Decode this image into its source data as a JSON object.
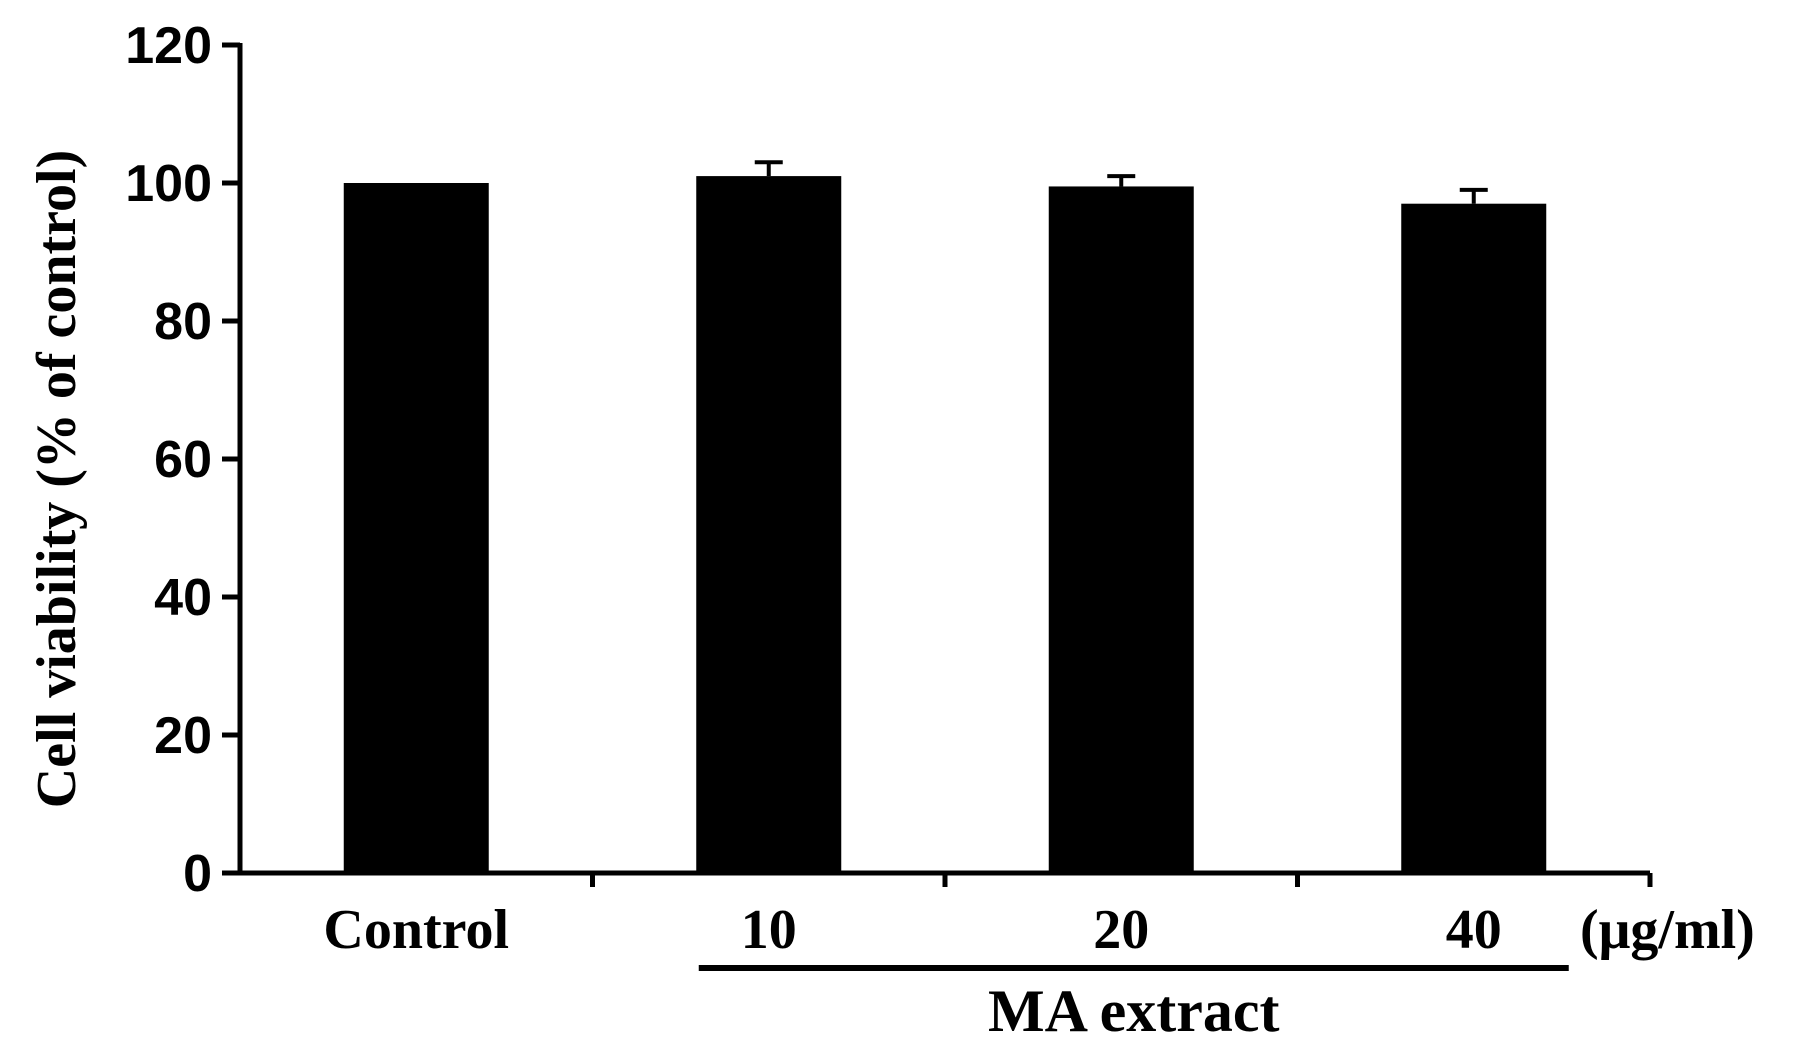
{
  "chart_data": {
    "type": "bar",
    "title": "",
    "xlabel": "",
    "ylabel": "Cell viability (% of control)",
    "categories": [
      "Control",
      "10",
      "20",
      "40"
    ],
    "values": [
      100,
      101,
      99.5,
      97
    ],
    "errors": [
      0,
      2,
      1.5,
      2
    ],
    "unit_label": "(μg/ml)",
    "group_label": "MA extract",
    "group_members": [
      "10",
      "20",
      "40"
    ],
    "ylim": [
      0,
      120
    ],
    "yticks": [
      0,
      20,
      40,
      60,
      80,
      100,
      120
    ],
    "grid": false,
    "legend": "none",
    "bar_color": "#000000"
  }
}
